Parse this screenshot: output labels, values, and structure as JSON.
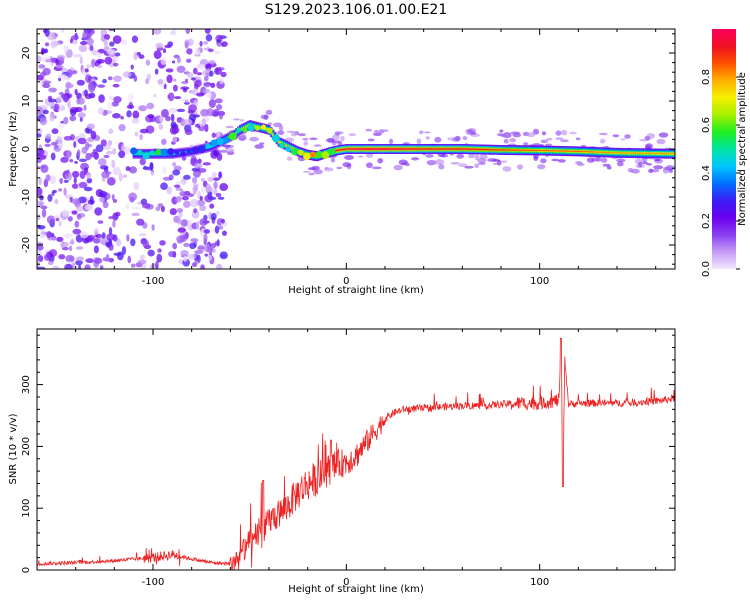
{
  "page_title": "S129.2023.106.01.00.E21",
  "colors": {
    "snr_line": "#ee2222",
    "background": "#ffffff",
    "frame": "#000000"
  },
  "colorbar": {
    "label": "Normalized spectral amplitude",
    "ticks": [
      "0.0",
      "0.2",
      "0.4",
      "0.6",
      "0.8"
    ],
    "range": [
      0,
      1
    ],
    "palette": [
      "#f3e8ff",
      "#c59cf5",
      "#8a3ff0",
      "#6a00ee",
      "#3b1ef5",
      "#0070ff",
      "#00c8ff",
      "#00e5a0",
      "#20ee20",
      "#a8f000",
      "#f5f000",
      "#ffb000",
      "#ff5000",
      "#ee1020",
      "#ff0060"
    ]
  },
  "chart_data": [
    {
      "type": "heatmap",
      "title": "",
      "xlabel": "Height of straight line (km)",
      "ylabel": "Frequency (Hz)",
      "xlim": [
        -160,
        170
      ],
      "ylim": [
        -25,
        25
      ],
      "x_ticks": [
        "-100",
        "0",
        "100"
      ],
      "y_ticks": [
        "-20",
        "-10",
        "0",
        "10",
        "20"
      ],
      "colorbar": "Normalized spectral amplitude",
      "ridge": {
        "x": [
          -110,
          -100,
          -90,
          -80,
          -70,
          -63,
          -58,
          -55,
          -50,
          -45,
          -40,
          -35,
          -30,
          -25,
          -20,
          -15,
          -10,
          -5,
          0,
          10,
          20,
          40,
          60,
          80,
          100,
          120,
          140,
          170
        ],
        "freq": [
          -1,
          -1,
          -1,
          -0.5,
          0.5,
          2,
          3,
          4,
          5,
          4.5,
          4,
          1.5,
          0.5,
          -0.5,
          -1.2,
          -1.5,
          -0.8,
          -0.3,
          0,
          0,
          0,
          0,
          0,
          -0.2,
          -0.3,
          -0.5,
          -0.8,
          -1
        ],
        "amplitude": [
          0.5,
          0.6,
          0.5,
          0.4,
          0.5,
          0.55,
          0.6,
          0.65,
          0.7,
          0.7,
          0.75,
          0.75,
          0.8,
          0.85,
          0.85,
          0.85,
          0.9,
          0.95,
          0.95,
          1,
          1,
          0.95,
          0.95,
          0.9,
          0.85,
          0.85,
          0.8,
          0.8
        ]
      },
      "noise_region_x": [
        -160,
        -63
      ]
    },
    {
      "type": "line",
      "title": "",
      "xlabel": "Height of straight line (km)",
      "ylabel": "SNR (10 * v/v)",
      "xlim": [
        -160,
        170
      ],
      "ylim": [
        0,
        390
      ],
      "x_ticks": [
        "-100",
        "0",
        "100"
      ],
      "y_ticks": [
        "0",
        "100",
        "200",
        "300"
      ],
      "series": [
        {
          "x": [
            -160,
            -140,
            -120,
            -100,
            -90,
            -80,
            -70,
            -60,
            -55,
            -50,
            -45,
            -42,
            -40,
            -35,
            -30,
            -25,
            -20,
            -15,
            -10,
            -5,
            0,
            5,
            10,
            15,
            20,
            25,
            30,
            40,
            50,
            60,
            70,
            80,
            90,
            100,
            105,
            110,
            111,
            112,
            113,
            115,
            120,
            140,
            160,
            170
          ],
          "y": [
            10,
            12,
            15,
            20,
            25,
            18,
            12,
            10,
            25,
            45,
            60,
            70,
            80,
            90,
            105,
            125,
            140,
            148,
            160,
            170,
            175,
            185,
            205,
            225,
            245,
            255,
            260,
            262,
            264,
            266,
            266,
            268,
            270,
            270,
            272,
            275,
            370,
            150,
            340,
            268,
            270,
            270,
            273,
            278
          ]
        }
      ],
      "spikes": [
        {
          "x": -43,
          "y": 145
        },
        {
          "x": -8,
          "y": 210
        },
        {
          "x": 111,
          "y": 375
        },
        {
          "x": 112,
          "y": 135
        }
      ]
    }
  ]
}
